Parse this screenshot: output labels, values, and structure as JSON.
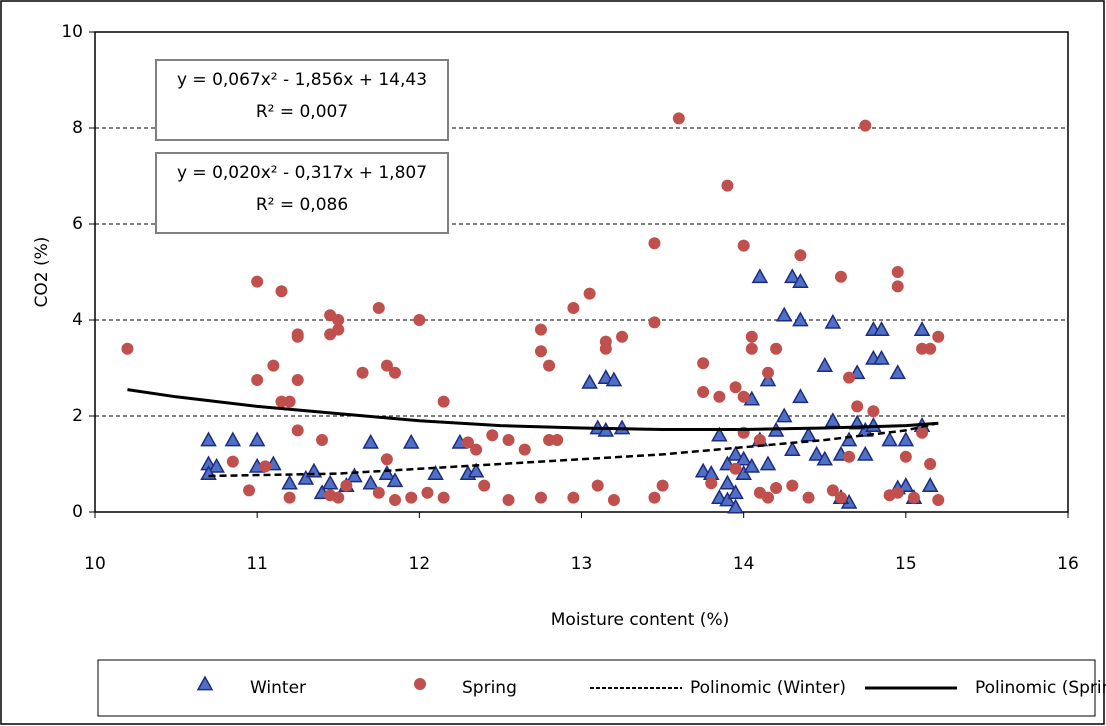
{
  "chart_data": {
    "type": "scatter",
    "xlabel": "Moisture content (%)",
    "ylabel": "CO2 (%)",
    "xlim": [
      10,
      16
    ],
    "xticks": [
      10,
      11,
      12,
      13,
      14,
      15,
      16
    ],
    "ylim": [
      0,
      10
    ],
    "yticks": [
      0,
      2,
      4,
      6,
      8,
      10
    ],
    "grid": true,
    "legend": "bottom",
    "annotations": [
      [
        "y = 0,067x² - 1,856x + 14,43",
        "R² = 0,007"
      ],
      [
        "y = 0,020x² - 0,317x + 1,807",
        "R² = 0,086"
      ]
    ],
    "series": [
      {
        "name": "Winter",
        "marker": "triangle",
        "color": "#4f70c4",
        "edge": "#1d2c80",
        "x": [
          10.7,
          10.7,
          10.75,
          10.7,
          10.85,
          11.0,
          11.0,
          11.1,
          11.2,
          11.3,
          11.35,
          11.4,
          11.45,
          11.55,
          11.6,
          11.7,
          11.7,
          11.8,
          11.85,
          11.95,
          12.1,
          12.25,
          12.3,
          12.35,
          13.05,
          13.1,
          13.15,
          13.15,
          13.2,
          13.25,
          13.75,
          13.8,
          13.85,
          13.85,
          13.9,
          13.9,
          13.9,
          13.95,
          13.95,
          13.95,
          14.0,
          14.0,
          14.05,
          14.05,
          14.1,
          14.1,
          14.15,
          14.15,
          14.2,
          14.25,
          14.25,
          14.3,
          14.3,
          14.35,
          14.35,
          14.35,
          14.4,
          14.45,
          14.5,
          14.55,
          14.55,
          14.6,
          14.65,
          14.65,
          14.7,
          14.75,
          14.75,
          14.8,
          14.8,
          14.85,
          14.85,
          14.9,
          14.95,
          14.95,
          15.0,
          15.05,
          15.1,
          15.1,
          15.15,
          15.0,
          14.8,
          14.7,
          14.5,
          14.6
        ],
        "values": [
          1.5,
          1.0,
          0.95,
          0.8,
          1.5,
          1.5,
          0.95,
          1.0,
          0.6,
          0.7,
          0.85,
          0.4,
          0.6,
          0.55,
          0.75,
          0.6,
          1.45,
          0.8,
          0.65,
          1.45,
          0.8,
          1.45,
          0.8,
          0.85,
          2.7,
          1.75,
          1.7,
          2.8,
          2.75,
          1.75,
          0.85,
          0.8,
          1.6,
          0.3,
          0.6,
          1.0,
          0.25,
          1.2,
          0.4,
          0.1,
          0.8,
          1.1,
          0.95,
          2.35,
          4.9,
          1.5,
          2.75,
          1.0,
          1.7,
          4.1,
          2.0,
          4.9,
          1.3,
          4.8,
          4.0,
          2.4,
          1.6,
          1.2,
          3.05,
          3.95,
          1.9,
          1.2,
          1.5,
          0.2,
          2.9,
          1.7,
          1.2,
          3.8,
          3.2,
          3.8,
          3.2,
          1.5,
          2.9,
          0.5,
          0.55,
          0.3,
          3.8,
          1.8,
          0.55,
          1.5,
          1.8,
          1.85,
          1.1,
          0.3
        ]
      },
      {
        "name": "Spring",
        "marker": "circle",
        "color": "#c0504d",
        "edge": "#c0504d",
        "x": [
          10.2,
          11.0,
          11.0,
          11.15,
          11.1,
          11.15,
          11.25,
          11.25,
          11.25,
          11.25,
          11.2,
          11.4,
          11.45,
          11.45,
          11.5,
          11.5,
          11.65,
          11.75,
          11.8,
          11.85,
          12.0,
          12.15,
          10.85,
          10.95,
          11.05,
          11.2,
          11.45,
          11.5,
          11.55,
          11.75,
          11.8,
          11.85,
          11.95,
          12.05,
          12.15,
          12.3,
          12.35,
          12.4,
          12.45,
          12.55,
          12.55,
          12.65,
          12.75,
          12.75,
          12.75,
          12.8,
          12.8,
          12.85,
          12.95,
          12.95,
          13.05,
          13.15,
          13.15,
          13.1,
          13.2,
          13.25,
          13.45,
          13.45,
          13.45,
          13.5,
          13.6,
          13.75,
          13.75,
          13.8,
          13.9,
          13.85,
          13.95,
          14.0,
          14.0,
          14.05,
          14.05,
          14.1,
          14.1,
          14.15,
          14.15,
          14.2,
          14.2,
          14.3,
          14.35,
          14.4,
          14.6,
          14.65,
          14.65,
          14.7,
          14.75,
          14.8,
          14.95,
          14.95,
          14.9,
          14.95,
          15.0,
          15.1,
          15.1,
          15.15,
          15.15,
          15.2,
          15.2,
          14.55,
          14.6,
          15.05,
          13.95,
          14.0
        ],
        "values": [
          3.4,
          4.8,
          2.75,
          4.6,
          3.05,
          2.3,
          2.75,
          3.7,
          3.65,
          1.7,
          2.3,
          1.5,
          4.1,
          3.7,
          4.0,
          3.8,
          2.9,
          4.25,
          3.05,
          2.9,
          4.0,
          2.3,
          1.05,
          0.45,
          0.95,
          0.3,
          0.35,
          0.3,
          0.55,
          0.4,
          1.1,
          0.25,
          0.3,
          0.4,
          0.3,
          1.45,
          1.3,
          0.55,
          1.6,
          1.5,
          0.25,
          1.3,
          0.3,
          3.8,
          3.35,
          3.05,
          1.5,
          1.5,
          4.25,
          0.3,
          4.55,
          3.55,
          3.4,
          0.55,
          0.25,
          3.65,
          5.6,
          3.95,
          0.3,
          0.55,
          8.2,
          3.1,
          2.5,
          0.6,
          6.8,
          2.4,
          2.6,
          5.55,
          2.4,
          3.65,
          3.4,
          1.5,
          0.4,
          2.9,
          0.3,
          0.5,
          3.4,
          0.55,
          5.35,
          0.3,
          4.9,
          2.8,
          1.15,
          2.2,
          8.05,
          2.1,
          5.0,
          4.7,
          0.35,
          0.4,
          1.15,
          1.65,
          3.4,
          3.4,
          1.0,
          3.65,
          0.25,
          0.45,
          0.3,
          0.3,
          0.9,
          1.65
        ]
      },
      {
        "name": "Polinomic (Winter)",
        "marker": "line",
        "style": "dashed",
        "color": "#000000",
        "x": [
          10.7,
          11.5,
          12,
          12.5,
          13,
          13.5,
          14,
          14.5,
          15,
          15.2
        ],
        "values": [
          0.75,
          0.8,
          0.9,
          1.0,
          1.1,
          1.2,
          1.35,
          1.5,
          1.7,
          1.85
        ]
      },
      {
        "name": "Polinomic (Spring)",
        "marker": "line",
        "style": "solid",
        "color": "#000000",
        "x": [
          10.2,
          10.5,
          11,
          11.5,
          12,
          12.5,
          13,
          13.5,
          14,
          14.5,
          15,
          15.2
        ],
        "values": [
          2.55,
          2.4,
          2.2,
          2.05,
          1.9,
          1.8,
          1.75,
          1.72,
          1.72,
          1.75,
          1.8,
          1.85
        ]
      }
    ]
  }
}
